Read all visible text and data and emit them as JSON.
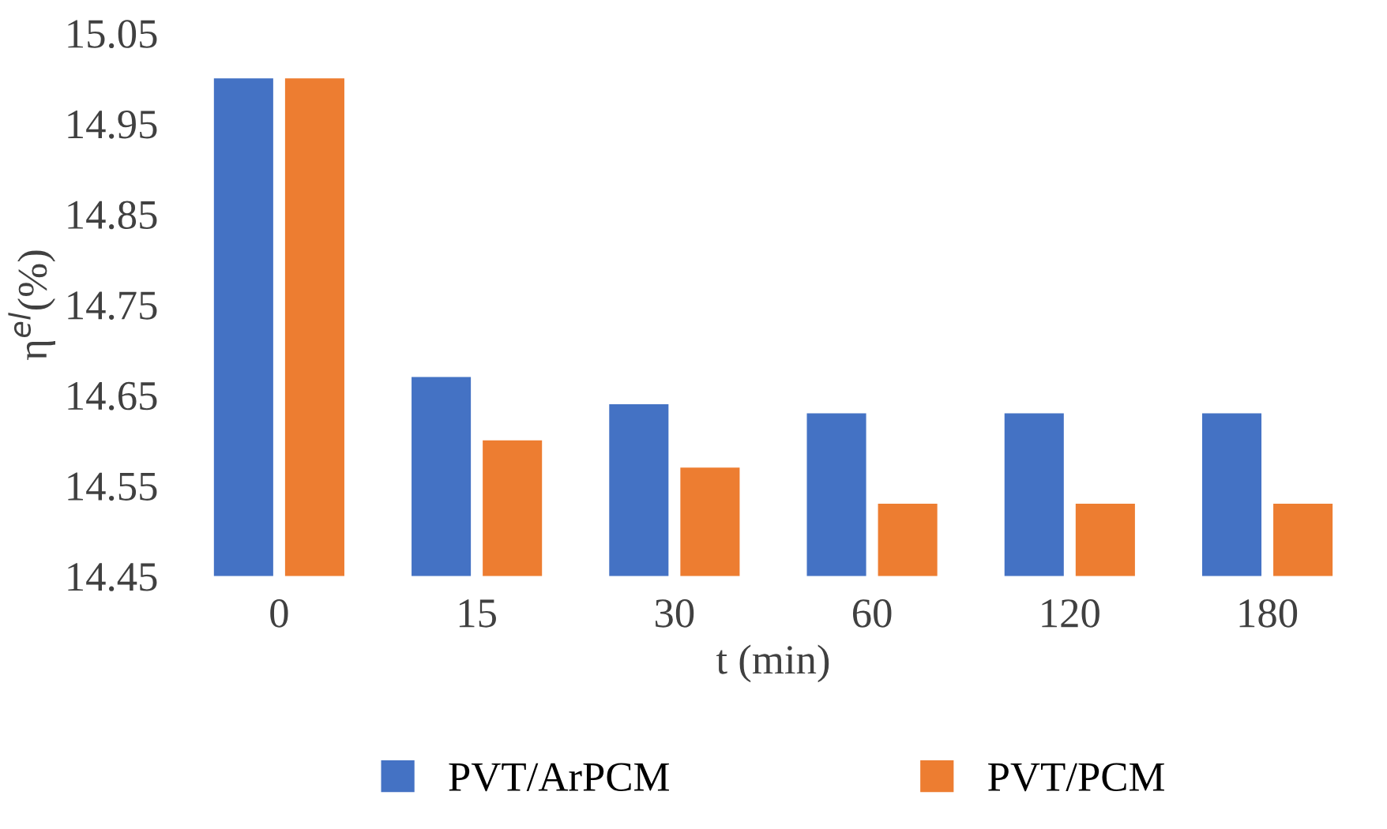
{
  "chart_data": {
    "type": "bar",
    "xlabel": "t (min)",
    "ylabel": "η$^{el}$(%)",
    "categories": [
      "0",
      "15",
      "30",
      "60",
      "120",
      "180"
    ],
    "series": [
      {
        "name": "PVT/ArPCM",
        "color": "#4472c4",
        "values": [
          15.0,
          14.67,
          14.64,
          14.63,
          14.63,
          14.63
        ]
      },
      {
        "name": "PVT/PCM",
        "color": "#ed7d31",
        "values": [
          15.0,
          14.6,
          14.57,
          14.53,
          14.53,
          14.53
        ]
      }
    ],
    "ylim": [
      14.45,
      15.05
    ],
    "yticks": [
      14.45,
      14.55,
      14.65,
      14.75,
      14.85,
      14.95,
      15.05
    ],
    "grid": false,
    "legend": "bottom"
  }
}
